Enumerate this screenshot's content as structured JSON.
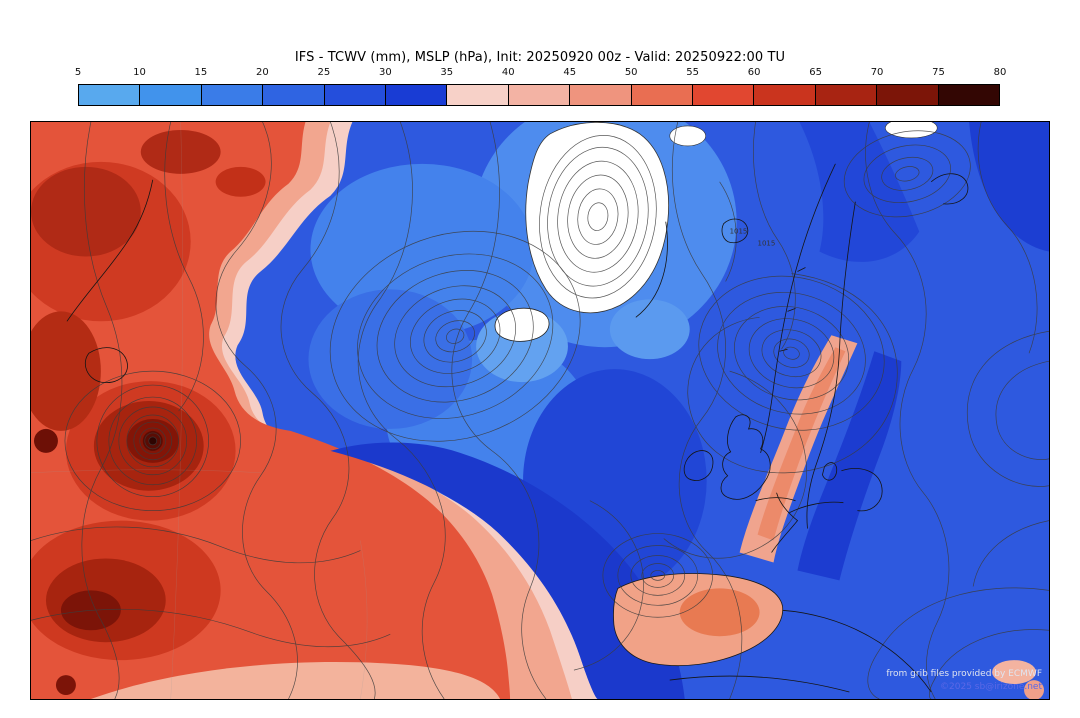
{
  "title": "IFS - TCWV (mm), MSLP (hPa), Init: 20250920 00z - Valid: 20250922:00 TU",
  "colorbar": {
    "ticks": [
      "5",
      "10",
      "15",
      "20",
      "25",
      "30",
      "35",
      "40",
      "45",
      "50",
      "55",
      "60",
      "65",
      "70",
      "75",
      "80"
    ],
    "segment_colors": [
      "#58a9ee",
      "#4193ec",
      "#3a7ce8",
      "#2f64e2",
      "#244edc",
      "#193cd4",
      "#f7d1c8",
      "#f3b3a4",
      "#ef947e",
      "#e96e52",
      "#e14730",
      "#ca341e",
      "#a82412",
      "#7c1508",
      "#330603"
    ]
  },
  "map": {
    "contour_labels": [
      "1015",
      "1015"
    ]
  },
  "credits": {
    "provider": "from grib files provided by ECMWF",
    "copyright": "©2025 sb@irizone.net"
  }
}
